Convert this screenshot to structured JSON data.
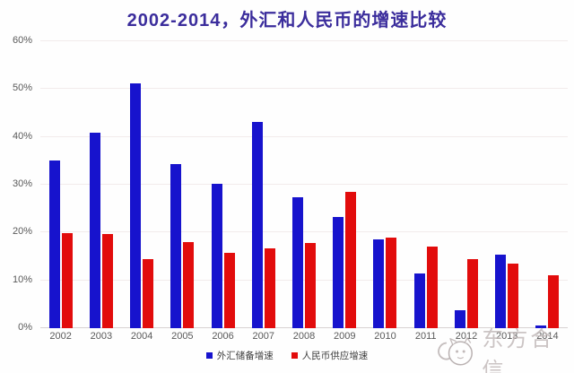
{
  "title": {
    "text": "2002-2014，外汇和人民币的增速比较",
    "color": "#3b2d9c"
  },
  "watermark": {
    "text": "东方合信",
    "logo_icon": "doodle-animal-face-icon",
    "color": "#bdb4b4"
  },
  "axes": {
    "y_unit": "%",
    "x_label_color": "#595959",
    "y_label_color": "#595959"
  },
  "chart_data": {
    "type": "bar",
    "title": "2002-2014，外汇和人民币的增速比较",
    "categories": [
      "2002",
      "2003",
      "2004",
      "2005",
      "2006",
      "2007",
      "2008",
      "2009",
      "2010",
      "2011",
      "2012",
      "2013",
      "2014"
    ],
    "series": [
      {
        "name": "外汇储备增速",
        "color": "#1713cd",
        "values": [
          35.0,
          40.8,
          51.2,
          34.3,
          30.2,
          43.2,
          27.3,
          23.3,
          18.5,
          11.5,
          3.8,
          15.4,
          0.5
        ]
      },
      {
        "name": "人民币供应增速",
        "color": "#e20c0c",
        "values": [
          19.8,
          19.6,
          14.5,
          18.0,
          15.7,
          16.7,
          17.8,
          28.5,
          19.0,
          17.0,
          14.4,
          13.5,
          11.0
        ]
      }
    ],
    "xlabel": "",
    "ylabel": "",
    "ylim": [
      0,
      60
    ],
    "yticks": [
      "0%",
      "10%",
      "20%",
      "30%",
      "40%",
      "50%",
      "60%"
    ],
    "grid": true,
    "legend_position": "bottom"
  }
}
